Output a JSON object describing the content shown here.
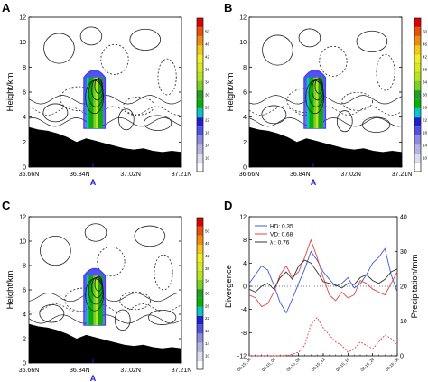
{
  "chart_data": [
    {
      "panel": "A",
      "type": "heatmap",
      "ylabel": "Height/km",
      "y_ticks": [
        "0",
        "2",
        "4",
        "6",
        "8",
        "10",
        "12"
      ],
      "ylim": [
        0,
        12
      ],
      "x_ticks": [
        "36.66N",
        "36.84N",
        "37.02N",
        "37.21N"
      ],
      "marker": "A",
      "colorbar_ticks": [
        "10",
        "14",
        "18",
        "22",
        "26",
        "30",
        "34",
        "38",
        "42",
        "46",
        "50"
      ],
      "colorbar_colors": [
        "#ffffff",
        "#dcdcf2",
        "#b4b4e6",
        "#8c8cdc",
        "#5050e6",
        "#1e1ed2",
        "#00c8c8",
        "#00b400",
        "#1ea01e",
        "#78d21e",
        "#b4e61e",
        "#d7eb1e",
        "#f0f01e",
        "#f5c814",
        "#f08c0a",
        "#eb5000",
        "#dc0000"
      ],
      "terrain_heights": [
        3.2,
        3.0,
        2.9,
        2.7,
        2.4,
        2.0,
        2.3,
        2.1,
        1.9,
        1.7,
        1.5,
        1.4,
        1.5,
        1.3,
        1.2,
        1.3,
        1.2
      ]
    },
    {
      "panel": "B",
      "type": "heatmap",
      "ylabel": "Height/km",
      "y_ticks": [
        "0",
        "2",
        "4",
        "6",
        "8",
        "10",
        "12"
      ],
      "ylim": [
        0,
        12
      ],
      "x_ticks": [
        "36.66N",
        "36.84N",
        "37.02N",
        "37.21N"
      ],
      "marker": "A",
      "colorbar_ticks": [
        "10",
        "14",
        "18",
        "22",
        "26",
        "30",
        "34",
        "38",
        "42",
        "46",
        "50"
      ],
      "terrain_heights": [
        3.2,
        3.0,
        2.9,
        2.7,
        2.4,
        2.0,
        2.3,
        2.1,
        1.9,
        1.7,
        1.5,
        1.4,
        1.5,
        1.3,
        1.2,
        1.3,
        1.2
      ]
    },
    {
      "panel": "C",
      "type": "heatmap",
      "ylabel": "Height/km",
      "y_ticks": [
        "0",
        "2",
        "4",
        "6",
        "8",
        "10",
        "12"
      ],
      "ylim": [
        0,
        12
      ],
      "x_ticks": [
        "36.66N",
        "36.84N",
        "37.02N",
        "37.21N"
      ],
      "marker": "A",
      "colorbar_ticks": [
        "10",
        "14",
        "18",
        "22",
        "26",
        "30",
        "34",
        "38",
        "42",
        "46",
        "50"
      ],
      "terrain_heights": [
        3.2,
        3.0,
        2.9,
        2.7,
        2.4,
        2.0,
        2.3,
        2.1,
        1.9,
        1.7,
        1.5,
        1.4,
        1.5,
        1.3,
        1.2,
        1.3,
        1.2
      ]
    },
    {
      "panel": "D",
      "type": "line",
      "ylabel": "Divergence",
      "y2label": "Precipitation/mm",
      "ylim": [
        -12,
        12
      ],
      "y2lim": [
        0,
        40
      ],
      "y_ticks": [
        "-12",
        "-8",
        "-4",
        "0",
        "4",
        "8",
        "12"
      ],
      "y2_ticks": [
        "0",
        "10",
        "20",
        "30",
        "40"
      ],
      "x_ticks": [
        "08-15_00",
        "08-15_04",
        "08-15_08",
        "08-15_12",
        "08-15_16",
        "08-15_20",
        "08-16_00"
      ],
      "legend": [
        "HD: 0.35",
        "VD: 0.68",
        "λ : 0.76"
      ],
      "x_index": [
        0,
        1,
        2,
        3,
        4,
        5,
        6,
        7,
        8,
        9,
        10,
        11,
        12,
        13,
        14,
        15,
        16,
        17,
        18,
        19,
        20,
        21,
        22,
        23,
        24
      ],
      "series": [
        {
          "name": "HD",
          "color": "#3b5bd6",
          "values": [
            0.5,
            2.0,
            3.5,
            2.8,
            0.2,
            -2.8,
            -4.6,
            -2.2,
            0.5,
            3.0,
            6.0,
            4.5,
            2.5,
            1.2,
            0.0,
            0.5,
            1.5,
            -0.3,
            0.4,
            2.0,
            4.0,
            5.0,
            6.5,
            2.0,
            -1.0
          ]
        },
        {
          "name": "VD",
          "color": "#e04646",
          "values": [
            -1.5,
            -2.0,
            -3.5,
            -3.0,
            -1.0,
            2.0,
            3.5,
            1.5,
            2.5,
            5.0,
            8.0,
            5.0,
            1.5,
            -1.5,
            -2.5,
            -1.0,
            -2.0,
            -1.5,
            1.0,
            0.5,
            -0.5,
            -1.0,
            -1.5,
            0.5,
            2.5
          ]
        },
        {
          "name": "λ",
          "color": "#333333",
          "values": [
            -0.5,
            -1.0,
            0.0,
            0.5,
            -0.5,
            1.5,
            2.5,
            1.2,
            3.5,
            4.5,
            4.0,
            2.5,
            0.8,
            0.5,
            0.2,
            -0.3,
            0.5,
            0.3,
            1.5,
            2.0,
            1.0,
            0.5,
            1.2,
            2.5,
            3.0
          ]
        },
        {
          "name": "Precipitation",
          "axis": "right",
          "color": "#e04646",
          "dashed": true,
          "values": [
            0,
            0,
            0,
            0,
            0,
            0,
            0,
            0.5,
            1,
            3,
            9,
            11,
            8,
            6,
            4,
            3,
            1,
            2,
            4,
            3,
            2,
            4,
            6,
            5,
            3
          ]
        }
      ]
    }
  ]
}
